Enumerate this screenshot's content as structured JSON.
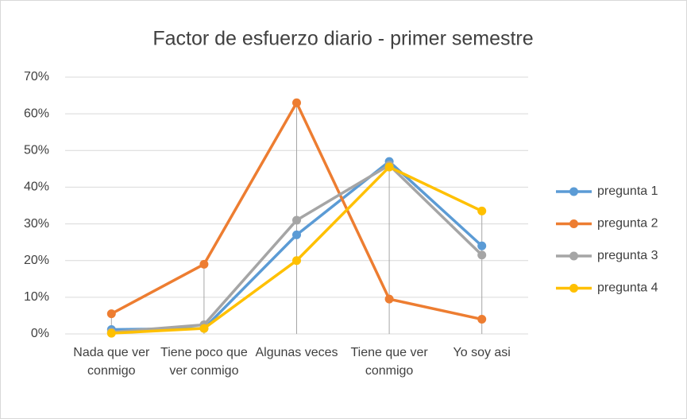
{
  "chart_data": {
    "type": "line",
    "title": "Factor de esfuerzo diario - primer semestre",
    "categories": [
      "Nada que ver conmigo",
      "Tiene poco que ver conmigo",
      "Algunas veces",
      "Tiene que ver conmigo",
      "Yo soy asi"
    ],
    "series": [
      {
        "name": "pregunta 1",
        "color": "#5b9bd5",
        "values": [
          1.2,
          1.5,
          27,
          47,
          24
        ]
      },
      {
        "name": "pregunta 2",
        "color": "#ed7d31",
        "values": [
          5.5,
          19,
          63,
          9.5,
          4
        ]
      },
      {
        "name": "pregunta 3",
        "color": "#a5a5a5",
        "values": [
          0.5,
          2.5,
          31,
          46,
          21.5
        ]
      },
      {
        "name": "pregunta 4",
        "color": "#ffc000",
        "values": [
          0.2,
          1.5,
          20,
          45.5,
          33.5
        ]
      }
    ],
    "ylim": [
      0,
      70
    ],
    "yticks": [
      {
        "value": 0,
        "label": "0%"
      },
      {
        "value": 10,
        "label": "10%"
      },
      {
        "value": 20,
        "label": "20%"
      },
      {
        "value": 30,
        "label": "30%"
      },
      {
        "value": 40,
        "label": "40%"
      },
      {
        "value": 50,
        "label": "50%"
      },
      {
        "value": 60,
        "label": "60%"
      },
      {
        "value": 70,
        "label": "70%"
      }
    ],
    "grid": true,
    "drop_lines": true,
    "legend": "right"
  }
}
